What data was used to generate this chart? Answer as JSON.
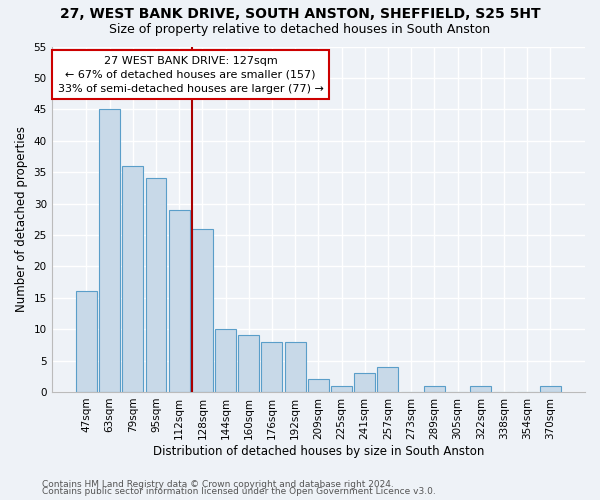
{
  "title1": "27, WEST BANK DRIVE, SOUTH ANSTON, SHEFFIELD, S25 5HT",
  "title2": "Size of property relative to detached houses in South Anston",
  "xlabel": "Distribution of detached houses by size in South Anston",
  "ylabel": "Number of detached properties",
  "categories": [
    "47sqm",
    "63sqm",
    "79sqm",
    "95sqm",
    "112sqm",
    "128sqm",
    "144sqm",
    "160sqm",
    "176sqm",
    "192sqm",
    "209sqm",
    "225sqm",
    "241sqm",
    "257sqm",
    "273sqm",
    "289sqm",
    "305sqm",
    "322sqm",
    "338sqm",
    "354sqm",
    "370sqm"
  ],
  "values": [
    16,
    45,
    36,
    34,
    29,
    26,
    10,
    9,
    8,
    8,
    2,
    1,
    3,
    4,
    0,
    1,
    0,
    1,
    0,
    0,
    1
  ],
  "bar_color": "#c8d9e8",
  "bar_edge_color": "#5a9ec9",
  "highlight_index": 5,
  "highlight_line_color": "#aa0000",
  "annotation_line1": "27 WEST BANK DRIVE: 127sqm",
  "annotation_line2": "← 67% of detached houses are smaller (157)",
  "annotation_line3": "33% of semi-detached houses are larger (77) →",
  "annotation_box_color": "#ffffff",
  "annotation_box_edge": "#cc0000",
  "ylim": [
    0,
    55
  ],
  "yticks": [
    0,
    5,
    10,
    15,
    20,
    25,
    30,
    35,
    40,
    45,
    50,
    55
  ],
  "footer1": "Contains HM Land Registry data © Crown copyright and database right 2024.",
  "footer2": "Contains public sector information licensed under the Open Government Licence v3.0.",
  "bg_color": "#eef2f7",
  "grid_color": "#ffffff",
  "title_fontsize": 10,
  "subtitle_fontsize": 9,
  "axis_label_fontsize": 8.5,
  "tick_fontsize": 7.5,
  "annotation_fontsize": 8,
  "footer_fontsize": 6.5
}
